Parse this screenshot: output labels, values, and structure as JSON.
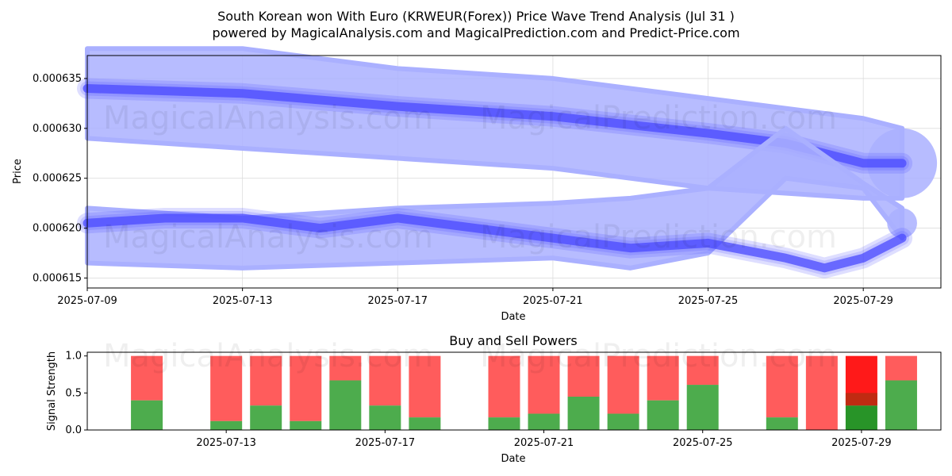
{
  "header": {
    "title": "South Korean won With Euro (KRWEUR(Forex)) Price Wave Trend Analysis (Jul 31 )",
    "subtitle": "powered by MagicalAnalysis.com and MagicalPrediction.com and Predict-Price.com"
  },
  "watermarks": {
    "left": "MagicalAnalysis.com",
    "right": "MagicalPrediction.com"
  },
  "colors": {
    "band": "#aab0ff",
    "trend": "#4a4aff",
    "buy": "#2e9e2e",
    "sell": "#ff3333",
    "buy_strong": "#118811",
    "sell_strong": "#ff0000"
  },
  "chart_data": [
    {
      "type": "line",
      "title": "",
      "xlabel": "Date",
      "ylabel": "Price",
      "x_start": "2025-07-09",
      "xlim": [
        "2025-07-09",
        "2025-07-31"
      ],
      "ylim": [
        0.000614,
        0.0006373
      ],
      "xticks": [
        "2025-07-09",
        "2025-07-13",
        "2025-07-17",
        "2025-07-21",
        "2025-07-25",
        "2025-07-29"
      ],
      "yticks": [
        "0.000615",
        "0.000620",
        "0.000625",
        "0.000630",
        "0.000635"
      ],
      "grid": true,
      "series": [
        {
          "role": "upper band outer",
          "x": [
            "2025-07-09",
            "2025-07-13",
            "2025-07-17",
            "2025-07-21",
            "2025-07-25",
            "2025-07-29",
            "2025-07-30"
          ],
          "values": [
            0.000638,
            0.000638,
            0.000636,
            0.000635,
            0.000633,
            0.000631,
            0.00063
          ],
          "lower": [
            0.000629,
            0.000628,
            0.000627,
            0.000626,
            0.000624,
            0.000623,
            0.000623
          ]
        },
        {
          "role": "upper trend line",
          "x": [
            "2025-07-09",
            "2025-07-13",
            "2025-07-17",
            "2025-07-21",
            "2025-07-25",
            "2025-07-27",
            "2025-07-29",
            "2025-07-30"
          ],
          "values": [
            0.000634,
            0.0006335,
            0.0006322,
            0.0006312,
            0.0006295,
            0.0006285,
            0.0006265,
            0.0006265
          ]
        },
        {
          "role": "lower band outer",
          "x": [
            "2025-07-09",
            "2025-07-13",
            "2025-07-17",
            "2025-07-21",
            "2025-07-23",
            "2025-07-25",
            "2025-07-27",
            "2025-07-29",
            "2025-07-30"
          ],
          "values": [
            0.000622,
            0.000621,
            0.000622,
            0.0006225,
            0.000623,
            0.000624,
            0.00063,
            0.0006245,
            0.000622
          ],
          "lower": [
            0.0006165,
            0.000616,
            0.0006165,
            0.000617,
            0.000616,
            0.0006175,
            0.000625,
            0.000624,
            0.000619
          ]
        },
        {
          "role": "lower trend line",
          "x": [
            "2025-07-09",
            "2025-07-11",
            "2025-07-13",
            "2025-07-15",
            "2025-07-17",
            "2025-07-19",
            "2025-07-21",
            "2025-07-22",
            "2025-07-23",
            "2025-07-25",
            "2025-07-27",
            "2025-07-28",
            "2025-07-29",
            "2025-07-30"
          ],
          "values": [
            0.0006205,
            0.000621,
            0.000621,
            0.00062,
            0.000621,
            0.00062,
            0.000619,
            0.0006185,
            0.000618,
            0.0006185,
            0.000617,
            0.000616,
            0.000617,
            0.000619
          ]
        }
      ]
    },
    {
      "type": "bar",
      "title": "Buy and Sell Powers",
      "xlabel": "Date",
      "ylabel": "Signal Strength",
      "ylim": [
        0,
        1.05
      ],
      "yticks": [
        "0.0",
        "0.5",
        "1.0"
      ],
      "xticks": [
        "2025-07-13",
        "2025-07-17",
        "2025-07-21",
        "2025-07-25",
        "2025-07-29"
      ],
      "bars": [
        {
          "date": "2025-07-11",
          "buy": 0.4
        },
        {
          "date": "2025-07-13",
          "buy": 0.12
        },
        {
          "date": "2025-07-14",
          "buy": 0.33
        },
        {
          "date": "2025-07-15",
          "buy": 0.12
        },
        {
          "date": "2025-07-16",
          "buy": 0.67
        },
        {
          "date": "2025-07-17",
          "buy": 0.33
        },
        {
          "date": "2025-07-18",
          "buy": 0.17
        },
        {
          "date": "2025-07-20",
          "buy": 0.17
        },
        {
          "date": "2025-07-21",
          "buy": 0.22
        },
        {
          "date": "2025-07-22",
          "buy": 0.45
        },
        {
          "date": "2025-07-23",
          "buy": 0.22
        },
        {
          "date": "2025-07-24",
          "buy": 0.4
        },
        {
          "date": "2025-07-25",
          "buy": 0.61
        },
        {
          "date": "2025-07-27",
          "buy": 0.17
        },
        {
          "date": "2025-07-28",
          "buy": 0.0
        },
        {
          "date": "2025-07-29",
          "buy": 0.33,
          "highlight": true
        },
        {
          "date": "2025-07-30",
          "buy": 0.67
        }
      ]
    }
  ]
}
